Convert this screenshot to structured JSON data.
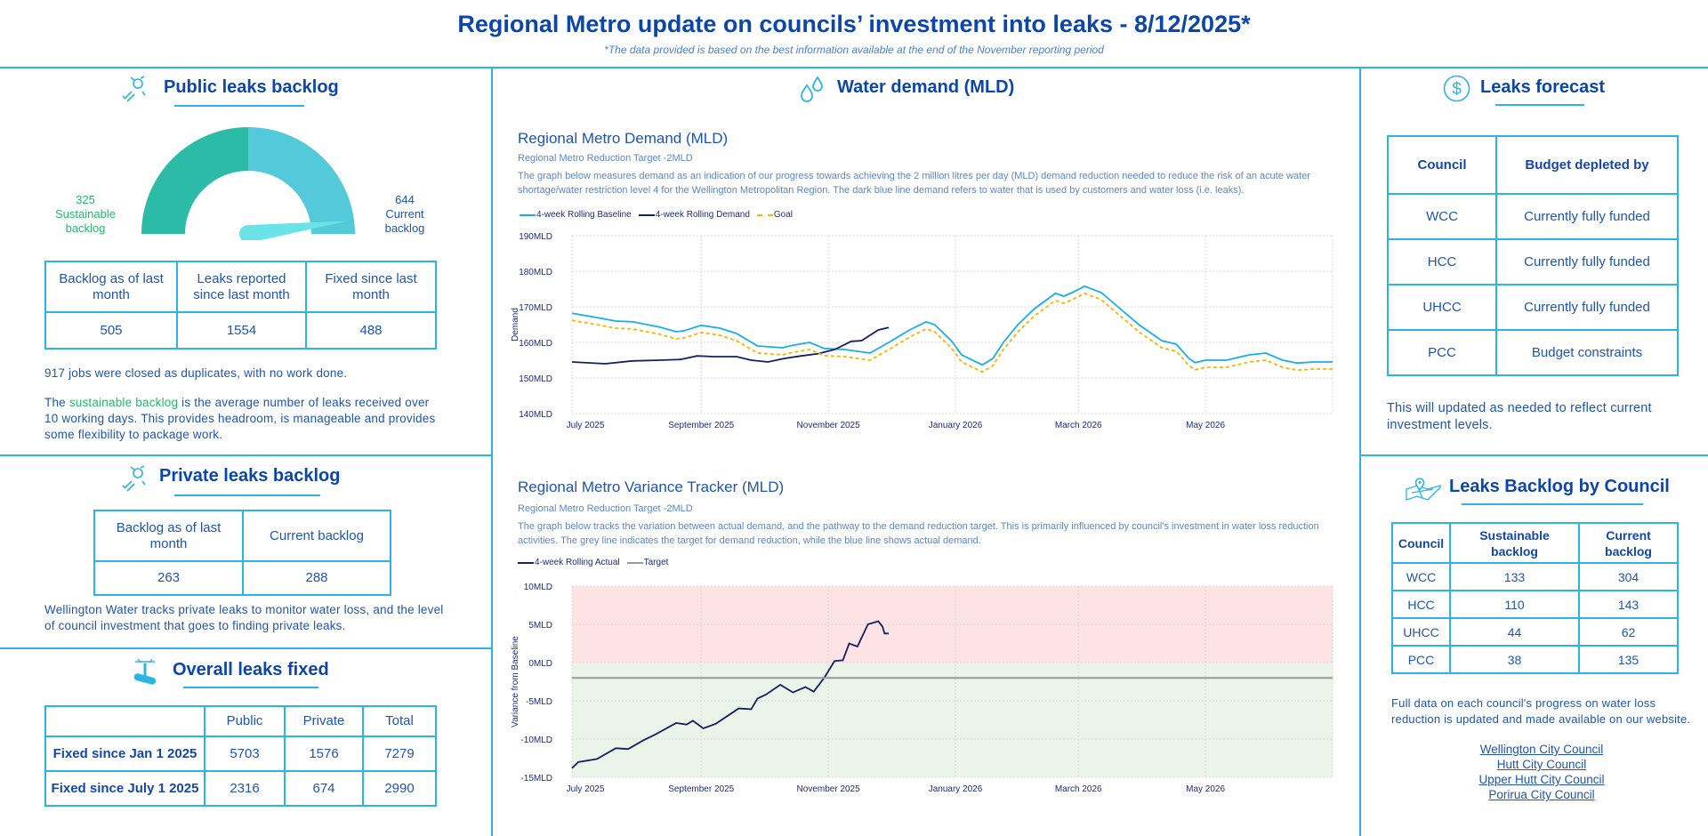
{
  "header": {
    "title": "Regional Metro update on councils’ investment into leaks - 8/12/2025*",
    "note": "*The data provided is based on the best information available at the end of the November reporting period"
  },
  "public_backlog": {
    "title": "Public leaks backlog",
    "gauge": {
      "sustainable": 325,
      "current": 644,
      "sustainable_label": "Sustainable backlog",
      "current_label": "Current backlog",
      "colors": {
        "sustainable": "#2bbba6",
        "current": "#53c9da",
        "needle": "#6ae3e8"
      }
    },
    "table": {
      "headers": [
        "Backlog as of last month",
        "Leaks reported since last month",
        "Fixed since last month"
      ],
      "values": [
        "505",
        "1554",
        "488"
      ]
    },
    "duplicates_note": "917 jobs were closed as duplicates, with no work done.",
    "para_pre": "The ",
    "para_highlight": "sustainable backlog",
    "para_post": " is the average number of leaks received over 10 working days. This provides headroom, is manageable and provides some flexibility to package work."
  },
  "private_backlog": {
    "title": "Private leaks backlog",
    "table": {
      "headers": [
        "Backlog as of last month",
        "Current backlog"
      ],
      "values": [
        "263",
        "288"
      ]
    },
    "note": "Wellington Water tracks private leaks to monitor water loss, and the level of council investment that goes to finding private leaks."
  },
  "overall_fixed": {
    "title": "Overall leaks fixed",
    "headers": [
      "",
      "Public",
      "Private",
      "Total"
    ],
    "rows": [
      [
        "Fixed since Jan 1 2025",
        "5703",
        "1576",
        "7279"
      ],
      [
        "Fixed since July 1 2025",
        "2316",
        "674",
        "2990"
      ]
    ]
  },
  "water_demand": {
    "title": "Water demand (MLD)"
  },
  "chart_data": [
    {
      "type": "line",
      "title": "Regional Metro Demand (MLD)",
      "subtitle": "Regional Metro Reduction Target -2MLD",
      "description": "The graph below measures demand as an indication of our progress towards achieving the 2 million litres per day (MLD) demand reduction needed to reduce the risk of an acute water shortage/water restriction level 4 for the Wellington Metropolitan Region. The dark blue line demand refers to water that is used by customers and water loss (i.e. leaks).",
      "ylabel": "Demand",
      "xlabel": "",
      "xlim": [
        "2025-07-01",
        "2026-07-01"
      ],
      "ylim": [
        140,
        190
      ],
      "yticks": [
        140,
        150,
        160,
        170,
        180,
        190
      ],
      "ytick_suffix": "MLD",
      "xticks": [
        {
          "date": "2025-07-01",
          "label": "July 2025"
        },
        {
          "date": "2025-09-01",
          "label": "September 2025"
        },
        {
          "date": "2025-11-01",
          "label": "November 2025"
        },
        {
          "date": "2026-01-01",
          "label": "January 2026"
        },
        {
          "date": "2026-03-01",
          "label": "March 2026"
        },
        {
          "date": "2026-05-01",
          "label": "May 2026"
        }
      ],
      "grid": true,
      "legend_position": "top-left",
      "series": [
        {
          "name": "4-week Rolling Baseline",
          "color": "#1aaee8",
          "style": "solid",
          "points": [
            [
              "2025-07-01",
              168.2
            ],
            [
              "2025-07-11",
              167.2
            ],
            [
              "2025-07-22",
              166
            ],
            [
              "2025-07-30",
              165.8
            ],
            [
              "2025-08-12",
              164.3
            ],
            [
              "2025-08-20",
              163
            ],
            [
              "2025-08-24",
              163.3
            ],
            [
              "2025-09-01",
              164.8
            ],
            [
              "2025-09-10",
              164
            ],
            [
              "2025-09-18",
              162.5
            ],
            [
              "2025-09-28",
              159
            ],
            [
              "2025-10-10",
              158.5
            ],
            [
              "2025-10-15",
              159.2
            ],
            [
              "2025-10-23",
              160
            ],
            [
              "2025-10-30",
              158.3
            ],
            [
              "2025-11-09",
              158
            ],
            [
              "2025-11-21",
              157
            ],
            [
              "2025-11-30",
              160
            ],
            [
              "2025-12-10",
              163.5
            ],
            [
              "2025-12-18",
              165.8
            ],
            [
              "2025-12-22",
              165
            ],
            [
              "2025-12-30",
              160.5
            ],
            [
              "2026-01-04",
              156.5
            ],
            [
              "2026-01-11",
              154.5
            ],
            [
              "2026-01-14",
              153.7
            ],
            [
              "2026-01-19",
              155.5
            ],
            [
              "2026-01-24",
              160
            ],
            [
              "2026-01-31",
              165
            ],
            [
              "2026-02-08",
              169.5
            ],
            [
              "2026-02-18",
              173.8
            ],
            [
              "2026-02-22",
              173
            ],
            [
              "2026-02-26",
              174
            ],
            [
              "2026-03-04",
              175.8
            ],
            [
              "2026-03-12",
              174
            ],
            [
              "2026-03-20",
              170
            ],
            [
              "2026-03-30",
              165
            ],
            [
              "2026-04-10",
              160.5
            ],
            [
              "2026-04-17",
              159.5
            ],
            [
              "2026-04-23",
              155.5
            ],
            [
              "2026-04-26",
              154.3
            ],
            [
              "2026-05-01",
              155
            ],
            [
              "2026-05-11",
              155
            ],
            [
              "2026-05-22",
              156.5
            ],
            [
              "2026-05-30",
              157
            ],
            [
              "2026-06-07",
              155
            ],
            [
              "2026-06-14",
              154.2
            ],
            [
              "2026-06-22",
              154.5
            ],
            [
              "2026-07-01",
              154.5
            ]
          ]
        },
        {
          "name": "4-week Rolling Demand",
          "color": "#142063",
          "style": "solid",
          "points": [
            [
              "2025-07-01",
              154.5
            ],
            [
              "2025-07-17",
              154
            ],
            [
              "2025-07-30",
              154.8
            ],
            [
              "2025-08-12",
              155
            ],
            [
              "2025-08-22",
              155.2
            ],
            [
              "2025-08-30",
              156.2
            ],
            [
              "2025-09-07",
              156
            ],
            [
              "2025-09-18",
              156
            ],
            [
              "2025-09-25",
              155
            ],
            [
              "2025-10-03",
              154.5
            ],
            [
              "2025-10-11",
              155.5
            ],
            [
              "2025-10-19",
              156.2
            ],
            [
              "2025-10-27",
              156.8
            ],
            [
              "2025-11-04",
              158
            ],
            [
              "2025-11-12",
              160.3
            ],
            [
              "2025-11-17",
              160.5
            ],
            [
              "2025-11-25",
              163.5
            ],
            [
              "2025-11-30",
              164.2
            ]
          ]
        },
        {
          "name": "Goal",
          "color": "#f7b500",
          "style": "dashed",
          "points": [
            [
              "2025-07-01",
              166.2
            ],
            [
              "2025-07-11",
              165.2
            ],
            [
              "2025-07-22",
              164
            ],
            [
              "2025-07-30",
              163.8
            ],
            [
              "2025-08-12",
              162.3
            ],
            [
              "2025-08-20",
              161
            ],
            [
              "2025-08-24",
              161.3
            ],
            [
              "2025-09-01",
              162.8
            ],
            [
              "2025-09-10",
              162
            ],
            [
              "2025-09-18",
              160.5
            ],
            [
              "2025-09-28",
              157
            ],
            [
              "2025-10-10",
              156.5
            ],
            [
              "2025-10-15",
              157.2
            ],
            [
              "2025-10-23",
              158
            ],
            [
              "2025-10-30",
              156.3
            ],
            [
              "2025-11-09",
              156
            ],
            [
              "2025-11-21",
              155
            ],
            [
              "2025-11-30",
              158
            ],
            [
              "2025-12-10",
              161.5
            ],
            [
              "2025-12-18",
              163.8
            ],
            [
              "2025-12-22",
              163
            ],
            [
              "2025-12-30",
              158.5
            ],
            [
              "2026-01-04",
              154.5
            ],
            [
              "2026-01-11",
              152.5
            ],
            [
              "2026-01-14",
              151.7
            ],
            [
              "2026-01-19",
              153.5
            ],
            [
              "2026-01-24",
              158
            ],
            [
              "2026-01-31",
              163
            ],
            [
              "2026-02-08",
              167.5
            ],
            [
              "2026-02-18",
              171.8
            ],
            [
              "2026-02-22",
              171
            ],
            [
              "2026-02-26",
              172
            ],
            [
              "2026-03-04",
              173.8
            ],
            [
              "2026-03-12",
              172
            ],
            [
              "2026-03-20",
              168
            ],
            [
              "2026-03-30",
              163
            ],
            [
              "2026-04-10",
              158.5
            ],
            [
              "2026-04-17",
              157.5
            ],
            [
              "2026-04-23",
              153.5
            ],
            [
              "2026-04-26",
              152.3
            ],
            [
              "2026-05-01",
              153
            ],
            [
              "2026-05-11",
              153
            ],
            [
              "2026-05-22",
              154.5
            ],
            [
              "2026-05-30",
              155
            ],
            [
              "2026-06-07",
              153
            ],
            [
              "2026-06-14",
              152.2
            ],
            [
              "2026-06-22",
              152.5
            ],
            [
              "2026-07-01",
              152.5
            ]
          ]
        }
      ]
    },
    {
      "type": "line",
      "title": "Regional Metro Variance Tracker (MLD)",
      "subtitle": "Regional Metro Reduction Target -2MLD",
      "description": "The graph below tracks the variation between actual demand, and the pathway to the demand reduction target. This is primarily influenced by council's investment in water loss reduction activities. The grey line indicates the target for demand reduction, while the blue line shows actual demand.",
      "ylabel": "Variance from Baseline",
      "xlabel": "",
      "xlim": [
        "2025-07-01",
        "2026-07-01"
      ],
      "ylim": [
        -15,
        10
      ],
      "yticks": [
        -15,
        -10,
        -5,
        0,
        5,
        10
      ],
      "ytick_suffix": "MLD",
      "xticks": [
        {
          "date": "2025-07-01",
          "label": "July 2025"
        },
        {
          "date": "2025-09-01",
          "label": "September 2025"
        },
        {
          "date": "2025-11-01",
          "label": "November 2025"
        },
        {
          "date": "2026-01-01",
          "label": "January 2026"
        },
        {
          "date": "2026-03-01",
          "label": "March 2026"
        },
        {
          "date": "2026-05-01",
          "label": "May 2026"
        }
      ],
      "bands": [
        {
          "from": 0,
          "to": 10,
          "color": "#fde3e4"
        },
        {
          "from": -15,
          "to": 0,
          "color": "#ebf4e8"
        }
      ],
      "grid": true,
      "legend_position": "top-left",
      "series": [
        {
          "name": "4-week Rolling Actual",
          "color": "#142063",
          "style": "solid",
          "points": [
            [
              "2025-07-01",
              -13.8
            ],
            [
              "2025-07-04",
              -13
            ],
            [
              "2025-07-13",
              -12.6
            ],
            [
              "2025-07-22",
              -11.2
            ],
            [
              "2025-07-28",
              -11.3
            ],
            [
              "2025-08-04",
              -10.2
            ],
            [
              "2025-08-10",
              -9.4
            ],
            [
              "2025-08-20",
              -7.9
            ],
            [
              "2025-08-25",
              -8.1
            ],
            [
              "2025-08-28",
              -7.6
            ],
            [
              "2025-09-02",
              -8.6
            ],
            [
              "2025-09-08",
              -8
            ],
            [
              "2025-09-19",
              -6
            ],
            [
              "2025-09-25",
              -6.1
            ],
            [
              "2025-09-28",
              -4.7
            ],
            [
              "2025-10-02",
              -4.2
            ],
            [
              "2025-10-09",
              -2.9
            ],
            [
              "2025-10-15",
              -3.9
            ],
            [
              "2025-10-21",
              -3.2
            ],
            [
              "2025-10-25",
              -3.8
            ],
            [
              "2025-10-30",
              -2
            ],
            [
              "2025-11-04",
              0.2
            ],
            [
              "2025-11-08",
              0.3
            ],
            [
              "2025-11-11",
              2.5
            ],
            [
              "2025-11-15",
              2.1
            ],
            [
              "2025-11-20",
              5
            ],
            [
              "2025-11-25",
              5.4
            ],
            [
              "2025-11-27",
              4.7
            ],
            [
              "2025-11-28",
              3.8
            ],
            [
              "2025-11-30",
              3.8
            ]
          ]
        },
        {
          "name": "Target",
          "color": "#9a9a9a",
          "style": "solid",
          "points": [
            [
              "2025-07-01",
              -2
            ],
            [
              "2026-07-01",
              -2
            ]
          ]
        }
      ]
    }
  ],
  "leaks_forecast": {
    "title": "Leaks forecast",
    "headers": [
      "Council",
      "Budget depleted by"
    ],
    "rows": [
      [
        "WCC",
        "Currently fully funded"
      ],
      [
        "HCC",
        "Currently fully funded"
      ],
      [
        "UHCC",
        "Currently fully funded"
      ],
      [
        "PCC",
        "Budget constraints"
      ]
    ],
    "note": "This will updated as needed to reflect current investment levels."
  },
  "backlog_by_council": {
    "title": "Leaks Backlog by Council",
    "headers": [
      "Council",
      "Sustainable backlog",
      "Current backlog"
    ],
    "rows": [
      [
        "WCC",
        "133",
        "304"
      ],
      [
        "HCC",
        "110",
        "143"
      ],
      [
        "UHCC",
        "44",
        "62"
      ],
      [
        "PCC",
        "38",
        "135"
      ]
    ],
    "note": "Full data on each council's progress on water loss reduction is updated and made available on our website.",
    "links": [
      "Wellington City Council",
      "Hutt City Council",
      "Upper Hutt City Council",
      "Porirua City Council"
    ]
  },
  "colors": {
    "accent": "#29b6e3",
    "heading": "#0b46a8",
    "text": "#1f55ad",
    "green": "#25b86a"
  }
}
